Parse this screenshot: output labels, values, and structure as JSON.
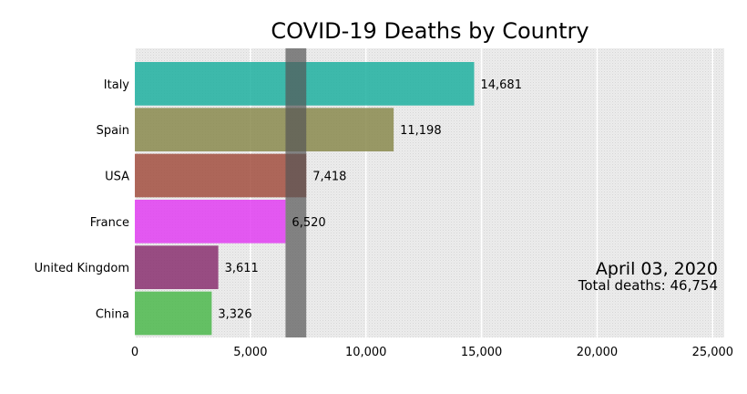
{
  "chart_data": {
    "type": "bar",
    "orientation": "horizontal",
    "title": "COVID-19 Deaths by Country",
    "categories": [
      "Italy",
      "Spain",
      "USA",
      "France",
      "United Kingdom",
      "China"
    ],
    "values": [
      14681,
      11198,
      7418,
      6520,
      3611,
      3326
    ],
    "value_labels": [
      "14,681",
      "11,198",
      "7,418",
      "6,520",
      "3,611",
      "3,326"
    ],
    "colors": [
      "#1fb0a0",
      "#8a8a4e",
      "#a24f40",
      "#e23ef2",
      "#8a3070",
      "#4cb84c"
    ],
    "x_ticks": [
      0,
      5000,
      10000,
      15000,
      20000,
      25000
    ],
    "x_tick_labels": [
      "0",
      "5,000",
      "10,000",
      "15,000",
      "20,000",
      "25,000"
    ],
    "xlim": [
      0,
      25500
    ],
    "grid": true,
    "highlight_band": [
      6520,
      7418
    ],
    "xlabel": "",
    "ylabel": ""
  },
  "annotation": {
    "date": "April 03, 2020",
    "total": "Total deaths: 46,754"
  }
}
